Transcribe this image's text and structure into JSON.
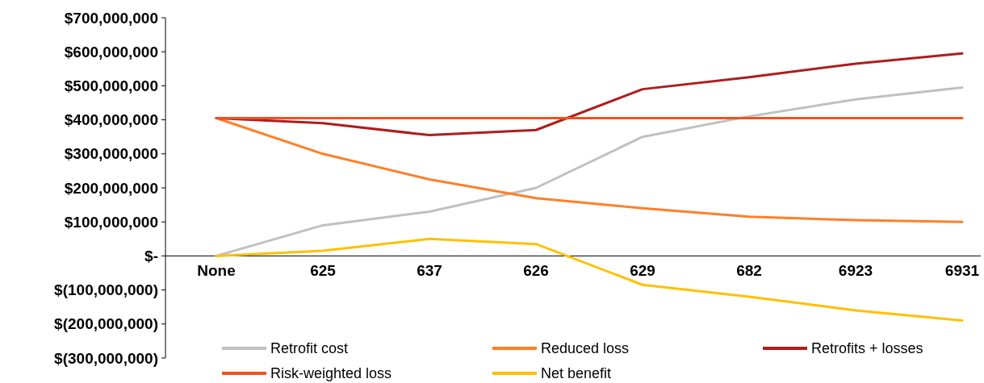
{
  "chart_data": {
    "type": "line",
    "categories": [
      "None",
      "625",
      "637",
      "626",
      "629",
      "682",
      "6923",
      "6931"
    ],
    "series": [
      {
        "name": "Retrofit cost",
        "color": "#c0c0c0",
        "values": [
          0,
          90000000,
          130000000,
          200000000,
          350000000,
          410000000,
          460000000,
          495000000
        ]
      },
      {
        "name": "Reduced loss",
        "color": "#ff7f27",
        "values": [
          405000000,
          300000000,
          225000000,
          170000000,
          140000000,
          115000000,
          105000000,
          100000000
        ]
      },
      {
        "name": "Retrofits + losses",
        "color": "#b01c1c",
        "values": [
          405000000,
          390000000,
          355000000,
          370000000,
          490000000,
          525000000,
          565000000,
          595000000
        ]
      },
      {
        "name": "Risk-weighted loss",
        "color": "#f4511e",
        "values": [
          405000000,
          405000000,
          405000000,
          405000000,
          405000000,
          405000000,
          405000000,
          405000000
        ]
      },
      {
        "name": "Net benefit",
        "color": "#ffc000",
        "values": [
          0,
          15000000,
          50000000,
          35000000,
          -85000000,
          -120000000,
          -160000000,
          -190000000
        ]
      }
    ],
    "ylim": [
      -300000000,
      700000000
    ],
    "yticks": [
      {
        "value": -300000000,
        "label": "$(300,000,000)"
      },
      {
        "value": -200000000,
        "label": "$(200,000,000)"
      },
      {
        "value": -100000000,
        "label": "$(100,000,000)"
      },
      {
        "value": 0,
        "label": "$-"
      },
      {
        "value": 100000000,
        "label": "$100,000,000"
      },
      {
        "value": 200000000,
        "label": "$200,000,000"
      },
      {
        "value": 300000000,
        "label": "$300,000,000"
      },
      {
        "value": 400000000,
        "label": "$400,000,000"
      },
      {
        "value": 500000000,
        "label": "$500,000,000"
      },
      {
        "value": 600000000,
        "label": "$600,000,000"
      },
      {
        "value": 700000000,
        "label": "$700,000,000"
      }
    ],
    "grid": false,
    "legend": "bottom",
    "marker": "none",
    "line_style": "solid"
  }
}
